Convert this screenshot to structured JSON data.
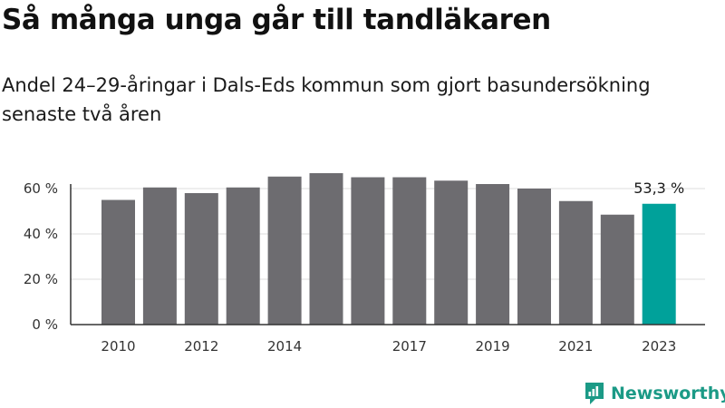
{
  "title": "Så många unga går till tandläkaren",
  "subtitle": "Andel 24–29-åringar i Dals-Eds kommun som gjort basundersökning senaste två åren",
  "brand": {
    "name": "Newsworthy",
    "color": "#1b9a86",
    "icon": "newsworthy-logo-icon"
  },
  "colors": {
    "bar": "#6d6c70",
    "highlight": "#00a19a",
    "grid": "#dddddd",
    "axis": "#333333"
  },
  "chart_data": {
    "type": "bar",
    "categories": [
      "2010",
      "2011",
      "2012",
      "2013",
      "2014",
      "2015",
      "2016",
      "2017",
      "2018",
      "2019",
      "2020",
      "2021",
      "2022",
      "2023"
    ],
    "x_tick_labels": [
      "2010",
      "",
      "2012",
      "",
      "2014",
      "",
      "",
      "2017",
      "",
      "2019",
      "",
      "2021",
      "",
      "2023"
    ],
    "values": [
      55,
      60.5,
      58,
      60.5,
      65.3,
      66.8,
      65,
      65,
      63.5,
      62,
      60,
      54.5,
      48.5,
      53.3
    ],
    "highlight_index": 13,
    "data_labels": [
      "",
      "",
      "",
      "",
      "",
      "",
      "",
      "",
      "",
      "",
      "",
      "",
      "",
      "53,3 %"
    ],
    "ylim": [
      0,
      70
    ],
    "yticks": [
      0,
      20,
      40,
      60
    ],
    "ytick_labels": [
      "0 %",
      "20 %",
      "40 %",
      "60 %"
    ],
    "grid": true,
    "xlabel": "",
    "ylabel": ""
  }
}
